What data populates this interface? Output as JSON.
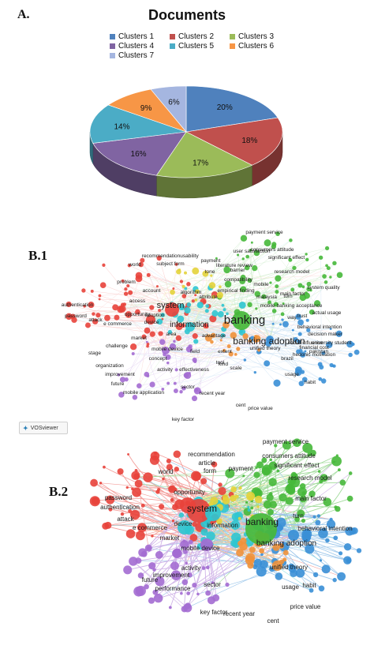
{
  "panels": {
    "a_label": "A.",
    "b1_label": "B.1",
    "b2_label": "B.2"
  },
  "chart_data": {
    "type": "pie",
    "title": "Documents",
    "legend_position": "top",
    "three_d": true,
    "series": [
      {
        "name": "Clusters 1",
        "value": 20,
        "label": "20%",
        "color": "#4f81bd"
      },
      {
        "name": "Clusters 2",
        "value": 18,
        "label": "18%",
        "color": "#c0504d"
      },
      {
        "name": "Clusters 3",
        "value": 17,
        "label": "17%",
        "color": "#9bbb59"
      },
      {
        "name": "Clusters 4",
        "value": 16,
        "label": "16%",
        "color": "#8064a2"
      },
      {
        "name": "Clusters 5",
        "value": 14,
        "label": "14%",
        "color": "#4bacc6"
      },
      {
        "name": "Clusters 6",
        "value": 9,
        "label": "9%",
        "color": "#f79646"
      },
      {
        "name": "Clusters 7",
        "value": 6,
        "label": "6%",
        "color": "#a5b6e0"
      }
    ]
  },
  "vosviewer_label": "VOSviewer",
  "network_b1": {
    "terms": [
      "payment service",
      "consumers attitude",
      "significant effect",
      "research model",
      "system quality",
      "main factor",
      "mobile banking acceptance",
      "behavioral intention",
      "actual usage",
      "decision maker",
      "university student",
      "pakistan",
      "financial cost",
      "hedonic motivation",
      "habit",
      "usage",
      "banking adoption",
      "social influence",
      "unified theory",
      "brazil",
      "scale",
      "kind",
      "extent",
      "advantage",
      "information",
      "system",
      "device",
      "opportunity",
      "access",
      "e commerce",
      "attack",
      "authentication",
      "password",
      "problem",
      "world",
      "recommendation",
      "usability",
      "payment",
      "account",
      "subject form",
      "algorithm",
      "adoption",
      "future",
      "improvement",
      "organization",
      "challenge",
      "market",
      "concept",
      "mobile device",
      "area",
      "activity",
      "effectiveness",
      "field",
      "sector",
      "mobile application",
      "recent year",
      "cent",
      "price value",
      "key factor",
      "tone",
      "empirical finding",
      "attribute",
      "compatibility",
      "barrier",
      "literature review",
      "user satisfaction",
      "trust",
      "banking",
      "way",
      "turn",
      "malaysia",
      "mobile",
      "stage",
      "tool"
    ]
  },
  "network_b2": {
    "terms": [
      "payment service",
      "consumers attitude",
      "significant effect",
      "research model",
      "main factor",
      "behavioral intention",
      "turn",
      "banking",
      "banking adoption",
      "unified theory",
      "habit",
      "usage",
      "price value",
      "key factor",
      "sector",
      "performance",
      "future",
      "activity",
      "improvement",
      "mobile device",
      "market",
      "e commerce",
      "device",
      "system",
      "information",
      "attack",
      "authentication",
      "password",
      "opportunity",
      "world",
      "form",
      "payment",
      "article",
      "recommendation",
      "recent year",
      "cent"
    ]
  }
}
